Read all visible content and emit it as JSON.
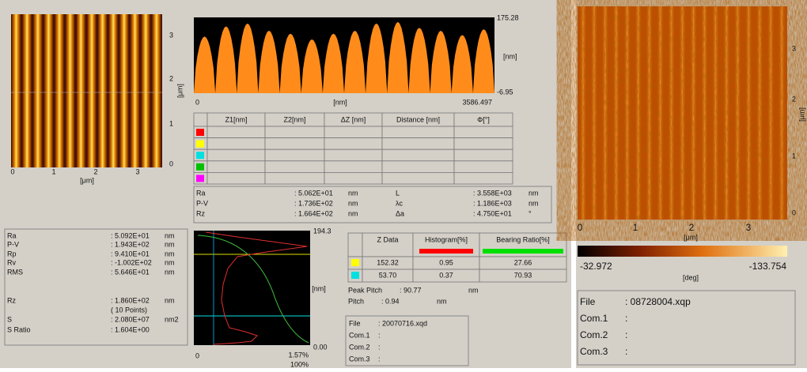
{
  "topo_image": {
    "x_ticks": [
      "0",
      "1",
      "2",
      "3"
    ],
    "y_ticks": [
      "0",
      "1",
      "2",
      "3"
    ],
    "x_unit": "[μm]",
    "y_unit": "[μm]"
  },
  "profile": {
    "y_max": "175.28",
    "y_unit": "[nm]",
    "y_min": "-6.95",
    "x_min": "0",
    "x_unit": "[nm]",
    "x_max": "3586.497"
  },
  "cursor_table": {
    "headers": [
      "Z1[nm]",
      "Z2[nm]",
      "ΔZ [nm]",
      "Distance [nm]",
      "Φ[°]"
    ]
  },
  "line_stats": [
    {
      "name": "Ra",
      "value": ": 5.062E+01",
      "unit": "nm"
    },
    {
      "name": "P-V",
      "value": ": 1.736E+02",
      "unit": "nm"
    },
    {
      "name": "Rz",
      "value": ": 1.664E+02",
      "unit": "nm"
    },
    {
      "name": "L",
      "value": ": 3.558E+03",
      "unit": "nm"
    },
    {
      "name": "λc",
      "value": ": 1.186E+03",
      "unit": "nm"
    },
    {
      "name": "Δa",
      "value": ": 4.750E+01",
      "unit": "°"
    }
  ],
  "area_stats": [
    {
      "name": "Ra",
      "value": ": 5.092E+01",
      "unit": "nm"
    },
    {
      "name": "P-V",
      "value": ": 1.943E+02",
      "unit": "nm"
    },
    {
      "name": "Rp",
      "value": ": 9.410E+01",
      "unit": "nm"
    },
    {
      "name": "Rv",
      "value": ": -1.002E+02",
      "unit": "nm"
    },
    {
      "name": "RMS",
      "value": ": 5.646E+01",
      "unit": "nm"
    },
    {
      "name": "Rz",
      "value": ": 1.860E+02",
      "unit": "nm"
    },
    {
      "value": "( 10 Points)"
    },
    {
      "name": "S",
      "value": ": 2.080E+07",
      "unit": "nm2"
    },
    {
      "name": "S Ratio",
      "value": ": 1.604E+00"
    }
  ],
  "histogram": {
    "y_max": "194.3",
    "y_unit": "[nm]",
    "y_min": "0.00",
    "x_min": "0",
    "x_max": "1.57%",
    "x_max_bearing": "100%"
  },
  "z_table": {
    "headers": [
      "Z Data",
      "Histogram[%]",
      "Bearing Ratio[%]"
    ],
    "rows": [
      [
        "152.32",
        "0.95",
        "27.66"
      ],
      [
        "53.70",
        "0.37",
        "70.93"
      ]
    ]
  },
  "pitch": [
    {
      "label": "Peak Pitch",
      "value": ": 90.77",
      "unit": "nm"
    },
    {
      "label": "Pitch",
      "value": ": 0.94",
      "unit": "nm"
    }
  ],
  "file_info": [
    {
      "label": "File",
      "value": ": 20070716.xqd"
    },
    {
      "label": "Com.1",
      "value": ":"
    },
    {
      "label": "Com.2",
      "value": ":"
    },
    {
      "label": "Com.3",
      "value": ":"
    }
  ],
  "phase_image": {
    "x_ticks": [
      "0",
      "1",
      "2",
      "3"
    ],
    "y_ticks": [
      "0",
      "1",
      "2",
      "3"
    ],
    "x_unit": "[μm]",
    "y_unit": "[μm]",
    "colorbar_min": "-32.972",
    "colorbar_unit": "[deg]",
    "colorbar_max": "-133.754"
  },
  "phase_file_info": [
    {
      "label": "File",
      "value": ": 08728004.xqp"
    },
    {
      "label": "Com.1",
      "value": ":"
    },
    {
      "label": "Com.2",
      "value": ":"
    },
    {
      "label": "Com.3",
      "value": ":"
    }
  ]
}
